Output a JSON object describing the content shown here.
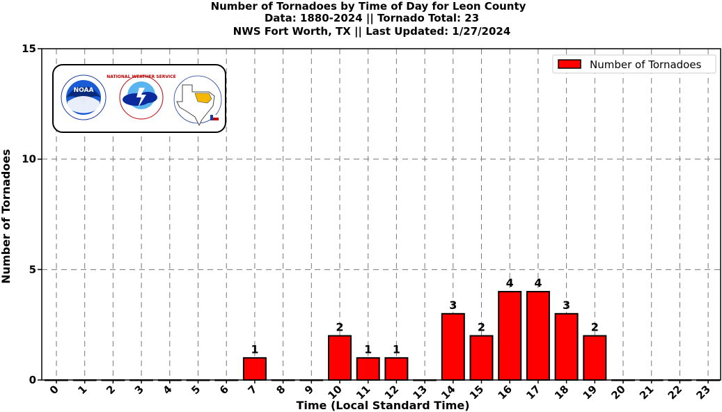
{
  "chart_data": {
    "type": "bar",
    "title_lines": [
      "Number of Tornadoes by Time of Day for Leon County",
      "Data: 1880-2024 || Tornado Total: 23",
      "NWS Fort Worth, TX || Last Updated: 1/27/2024"
    ],
    "xlabel": "Time (Local Standard Time)",
    "ylabel": "Number of Tornadoes",
    "categories": [
      "0",
      "1",
      "2",
      "3",
      "4",
      "5",
      "6",
      "7",
      "8",
      "9",
      "10",
      "11",
      "12",
      "13",
      "14",
      "15",
      "16",
      "17",
      "18",
      "19",
      "20",
      "21",
      "22",
      "23"
    ],
    "series": [
      {
        "name": "Number of Tornadoes",
        "values": [
          0,
          0,
          0,
          0,
          0,
          0,
          0,
          1,
          0,
          0,
          2,
          1,
          1,
          0,
          3,
          2,
          4,
          4,
          3,
          2,
          0,
          0,
          0,
          0
        ],
        "color": "#ff0000"
      }
    ],
    "ylim": [
      0,
      15
    ],
    "yticks": [
      0,
      5,
      10,
      15
    ],
    "grid": true,
    "legend_position": "top-right",
    "bar_edge_color": "#000000"
  },
  "logos": {
    "noaa_icon": "noaa-logo",
    "noaa_text": "NOAA",
    "nws_icon": "nws-logo",
    "nws_text": "NATIONAL WEATHER SERVICE",
    "texas_icon": "texas-map-logo"
  }
}
